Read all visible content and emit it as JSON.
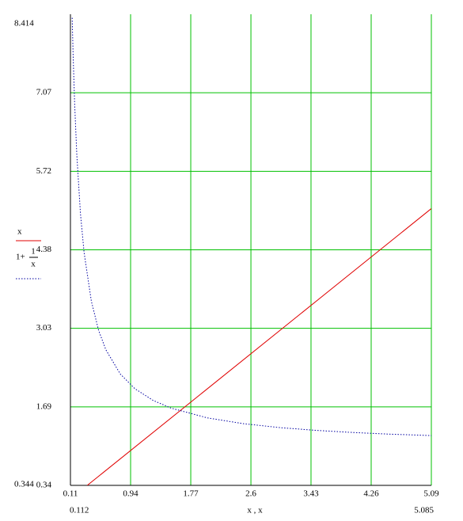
{
  "chart_data": {
    "type": "line",
    "xlabel": "x , x",
    "xlim": [
      0.112,
      5.085
    ],
    "ylim": [
      0.344,
      8.414
    ],
    "xticks": [
      {
        "value": 0.112,
        "label": "0.11"
      },
      {
        "value": 0.941,
        "label": "0.94"
      },
      {
        "value": 1.77,
        "label": "1.77"
      },
      {
        "value": 2.599,
        "label": "2.6"
      },
      {
        "value": 3.427,
        "label": "3.43"
      },
      {
        "value": 4.256,
        "label": "4.26"
      },
      {
        "value": 5.085,
        "label": "5.09"
      }
    ],
    "yticks": [
      {
        "value": 0.344,
        "label": "0.34"
      },
      {
        "value": 1.689,
        "label": "1.69"
      },
      {
        "value": 3.034,
        "label": "3.03"
      },
      {
        "value": 4.379,
        "label": "4.38"
      },
      {
        "value": 5.724,
        "label": "5.72"
      },
      {
        "value": 7.069,
        "label": "7.07"
      }
    ],
    "grid": true,
    "grid_color": "#00c000",
    "series": [
      {
        "name": "x",
        "color": "#e00000",
        "style": "solid",
        "x": [
          0.344,
          5.085
        ],
        "values": [
          0.344,
          5.085
        ]
      },
      {
        "name_parts": [
          "1+",
          "1",
          "x"
        ],
        "color": "#0000a0",
        "style": "dotted",
        "x": [
          0.136,
          0.14,
          0.15,
          0.17,
          0.2,
          0.25,
          0.3,
          0.4,
          0.5,
          0.6,
          0.8,
          1,
          1.25,
          1.5,
          2,
          2.5,
          3,
          3.5,
          4,
          4.5,
          5.085
        ],
        "values": [
          8.353,
          8.143,
          7.667,
          6.882,
          6,
          5,
          4.333,
          3.5,
          3,
          2.667,
          2.25,
          2,
          1.8,
          1.667,
          1.5,
          1.4,
          1.333,
          1.286,
          1.25,
          1.222,
          1.197
        ]
      }
    ]
  }
}
